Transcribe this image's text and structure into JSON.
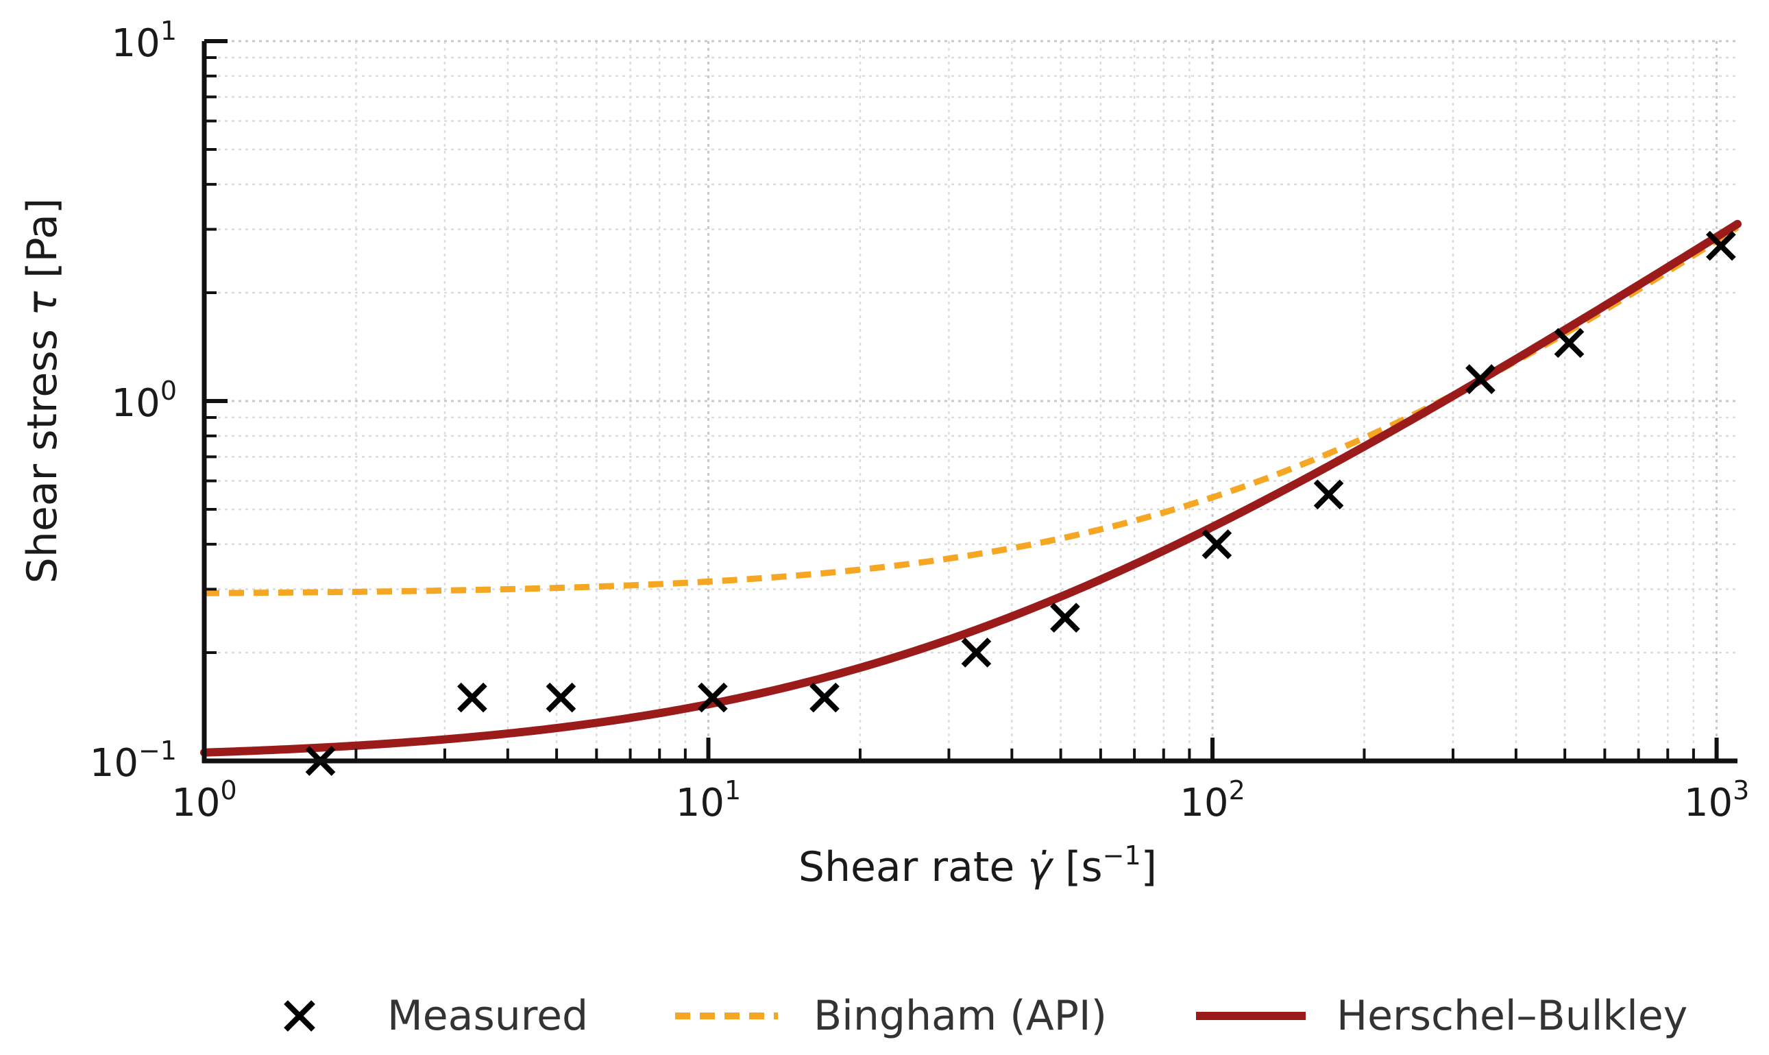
{
  "chart_data": {
    "type": "line",
    "xscale": "log",
    "yscale": "log",
    "xlim": [
      1,
      1100
    ],
    "ylim": [
      0.1,
      10
    ],
    "grid": true,
    "xlabel": "Shear rate γ̇ [s⁻¹]",
    "ylabel": "Shear stress τ [Pa]",
    "xlabel_parts": {
      "main": "Shear rate ",
      "symbol": "γ̇",
      "open": " [s",
      "sup": "−1",
      "close": "]"
    },
    "ylabel_parts": {
      "main": "Shear stress ",
      "symbol": "τ",
      "unit": " [Pa]"
    },
    "x_ticks": [
      {
        "value": 1,
        "base": "10",
        "exp": "0"
      },
      {
        "value": 10,
        "base": "10",
        "exp": "1"
      },
      {
        "value": 100,
        "base": "10",
        "exp": "2"
      },
      {
        "value": 1000,
        "base": "10",
        "exp": "3"
      }
    ],
    "y_ticks": [
      {
        "value": 0.1,
        "base": "10",
        "exp": "−1"
      },
      {
        "value": 1,
        "base": "10",
        "exp": "0"
      },
      {
        "value": 10,
        "base": "10",
        "exp": "1"
      }
    ],
    "legend_position": "bottom-outside",
    "series": [
      {
        "name": "Measured",
        "kind": "scatter",
        "marker": "x",
        "color": "#000000",
        "x": [
          1.7,
          3.4,
          5.1,
          10.2,
          17,
          34,
          51,
          102,
          170,
          340,
          510,
          1020
        ],
        "y": [
          0.1,
          0.15,
          0.15,
          0.15,
          0.15,
          0.2,
          0.25,
          0.4,
          0.55,
          1.15,
          1.45,
          2.7
        ]
      },
      {
        "name": "Bingham (API)",
        "kind": "line",
        "style": "dashed",
        "color": "#f5a623",
        "model": {
          "tau0": 0.29,
          "mu": 0.0025
        }
      },
      {
        "name": "Herschel–Bulkley",
        "kind": "line",
        "style": "solid",
        "color": "#9b1b1b",
        "model": {
          "tau0": 0.1,
          "k": 0.0055,
          "n": 0.9
        }
      }
    ]
  }
}
